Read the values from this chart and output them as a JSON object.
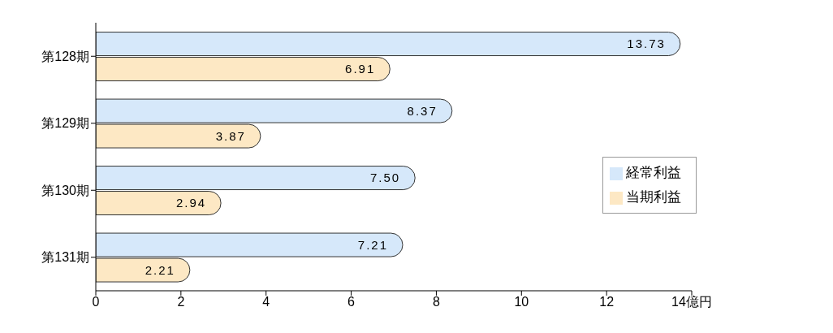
{
  "chart_data": {
    "type": "bar",
    "orientation": "horizontal",
    "categories": [
      "第128期",
      "第129期",
      "第130期",
      "第131期"
    ],
    "series": [
      {
        "name": "経常利益",
        "color": "#d6e8fa",
        "values": [
          13.73,
          8.37,
          7.5,
          7.21
        ]
      },
      {
        "name": "当期利益",
        "color": "#fde8c4",
        "values": [
          6.91,
          3.87,
          2.94,
          2.21
        ]
      }
    ],
    "value_labels": [
      [
        "13.73",
        "8.37",
        "7.50",
        "7.21"
      ],
      [
        "6.91",
        "3.87",
        "2.94",
        "2.21"
      ]
    ],
    "xlim": [
      0,
      14
    ],
    "xticks": [
      0,
      2,
      4,
      6,
      8,
      10,
      12,
      {
        "value": 14,
        "label": "14億円"
      }
    ],
    "legend": "right",
    "grid": false
  }
}
